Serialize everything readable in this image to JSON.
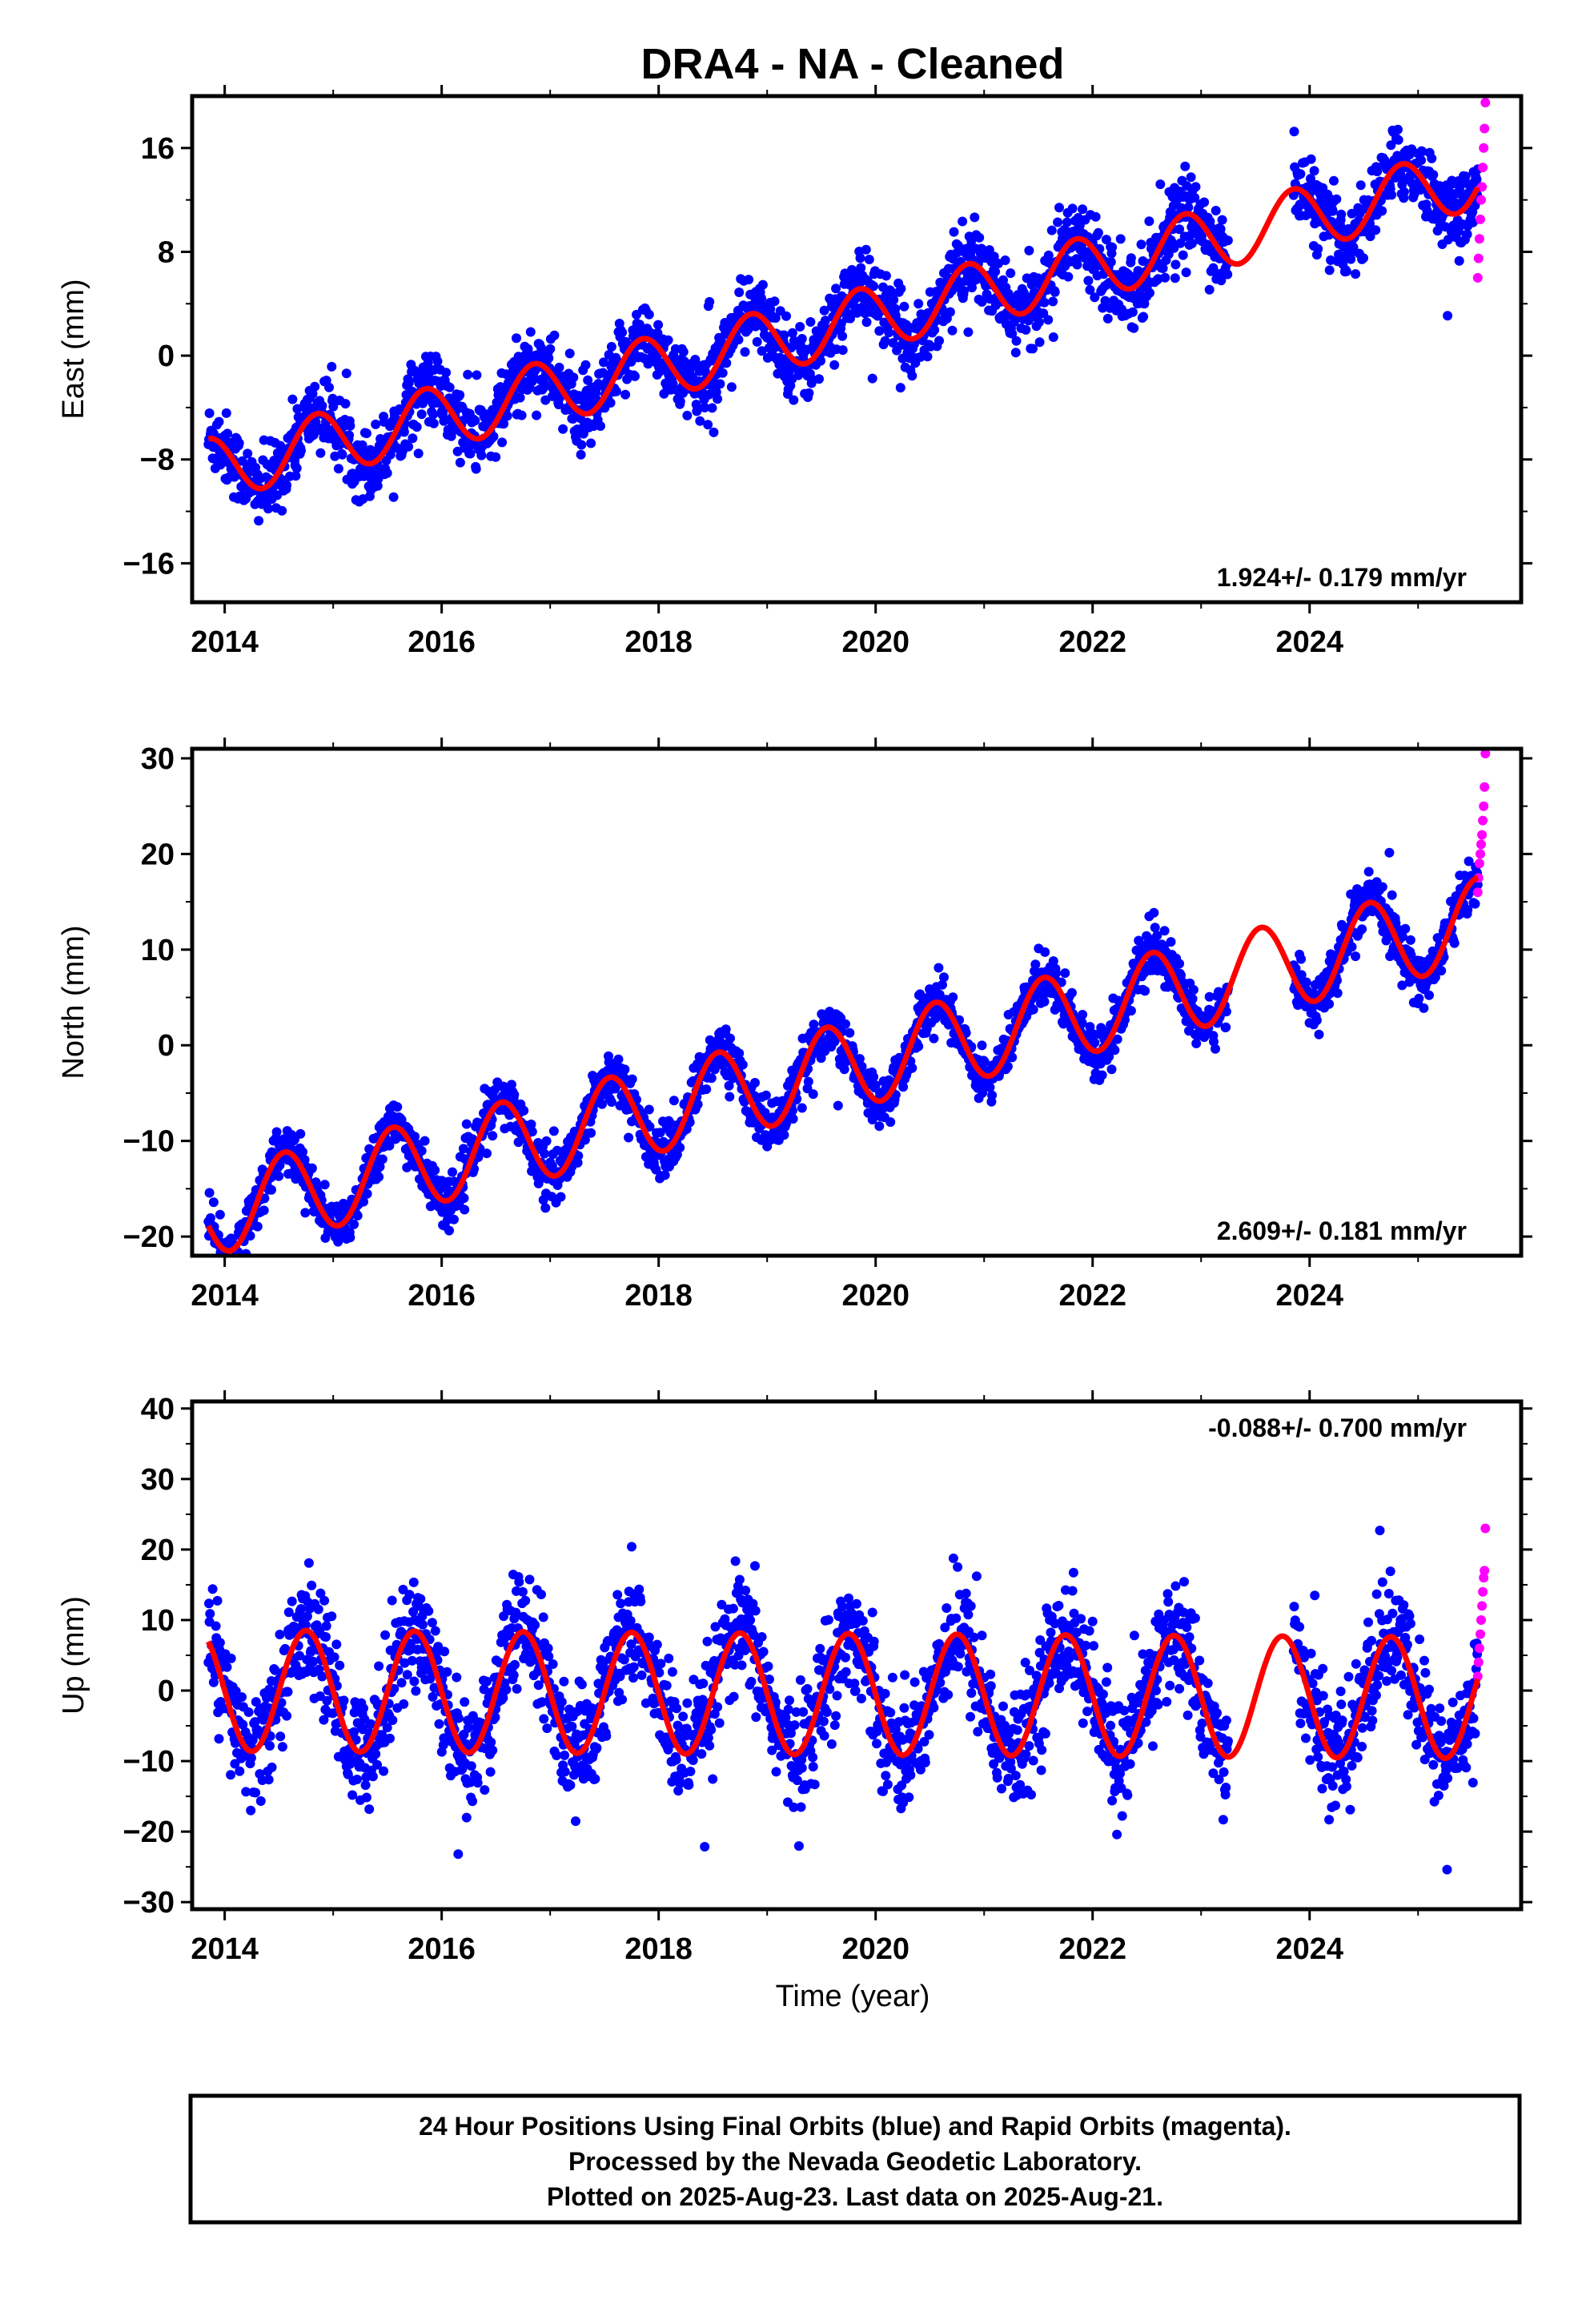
{
  "title": "DRA4  - NA - Cleaned",
  "xlabel": "Time (year)",
  "colors": {
    "final_orbits": "#0000ff",
    "rapid_orbits": "#ff00ff",
    "model": "#ff0000",
    "frame": "#000000"
  },
  "footer": {
    "line1": "24 Hour Positions Using Final Orbits (blue) and Rapid Orbits (magenta).",
    "line2": "Processed by the Nevada Geodetic Laboratory.",
    "line3": "Plotted on 2025-Aug-23. Last data on 2025-Aug-21."
  },
  "chart_data": [
    {
      "type": "scatter",
      "component": "east",
      "ylabel": "East (mm)",
      "rate_label": "1.924+/- 0.179 mm/yr",
      "xlim": [
        2013.7,
        2025.95
      ],
      "ylim": [
        -19,
        20
      ],
      "yticks": [
        -16,
        -8,
        0,
        8,
        16
      ],
      "xticks": [
        2014,
        2016,
        2018,
        2020,
        2022,
        2024
      ],
      "data_span": [
        2013.85,
        2025.55
      ],
      "gaps": [
        [
          2023.25,
          2023.85
        ]
      ],
      "model": {
        "type": "line",
        "name": "fit",
        "intercept_at_2013_85": -8.8,
        "slope_mm_per_yr": 1.924,
        "annual_amplitude": 2.4,
        "annual_peak_year_fraction": 0.85
      },
      "series": [
        {
          "name": "final_orbits",
          "scatter_sd": 1.4,
          "n_points": 2400
        },
        {
          "name": "rapid_orbits",
          "x_range": [
            2025.55,
            2025.62
          ],
          "y_values": [
            6,
            7.5,
            9,
            10.5,
            12,
            13,
            14.5,
            16,
            17.5,
            19.5
          ]
        }
      ]
    },
    {
      "type": "scatter",
      "component": "north",
      "ylabel": "North (mm)",
      "rate_label": "2.609+/- 0.181 mm/yr",
      "xlim": [
        2013.7,
        2025.95
      ],
      "ylim": [
        -22,
        31
      ],
      "yticks": [
        -20,
        -10,
        0,
        10,
        20,
        30
      ],
      "xticks": [
        2014,
        2016,
        2018,
        2020,
        2022,
        2024
      ],
      "data_span": [
        2013.85,
        2025.55
      ],
      "gaps": [
        [
          2023.25,
          2023.85
        ]
      ],
      "model": {
        "type": "line",
        "name": "fit",
        "intercept_at_2013_85": -17.5,
        "slope_mm_per_yr": 2.609,
        "annual_amplitude": 4.5,
        "annual_peak_year_fraction": 0.55
      },
      "series": [
        {
          "name": "final_orbits",
          "scatter_sd": 1.3,
          "n_points": 2400
        },
        {
          "name": "rapid_orbits",
          "x_range": [
            2025.55,
            2025.62
          ],
          "y_values": [
            16,
            17.5,
            19,
            20,
            21,
            22,
            23.5,
            25,
            27,
            30.5
          ]
        }
      ]
    },
    {
      "type": "scatter",
      "component": "up",
      "ylabel": "Up (mm)",
      "rate_label": "-0.088+/- 0.700 mm/yr",
      "xlim": [
        2013.7,
        2025.95
      ],
      "ylim": [
        -31,
        41
      ],
      "yticks": [
        -30,
        -20,
        -10,
        0,
        10,
        20,
        30,
        40
      ],
      "xticks": [
        2014,
        2016,
        2018,
        2020,
        2022,
        2024
      ],
      "data_span": [
        2013.85,
        2025.55
      ],
      "gaps": [
        [
          2023.25,
          2023.85
        ]
      ],
      "model": {
        "type": "line",
        "name": "fit",
        "intercept_at_2013_85": 0,
        "slope_mm_per_yr": -0.088,
        "annual_amplitude": 8.6,
        "annual_peak_year_fraction": 0.75
      },
      "series": [
        {
          "name": "final_orbits",
          "scatter_sd": 4.0,
          "n_points": 2400
        },
        {
          "name": "rapid_orbits",
          "x_range": [
            2025.55,
            2025.62
          ],
          "y_values": [
            2,
            4,
            6,
            8,
            10,
            12,
            14,
            16,
            17,
            23
          ]
        }
      ]
    }
  ]
}
